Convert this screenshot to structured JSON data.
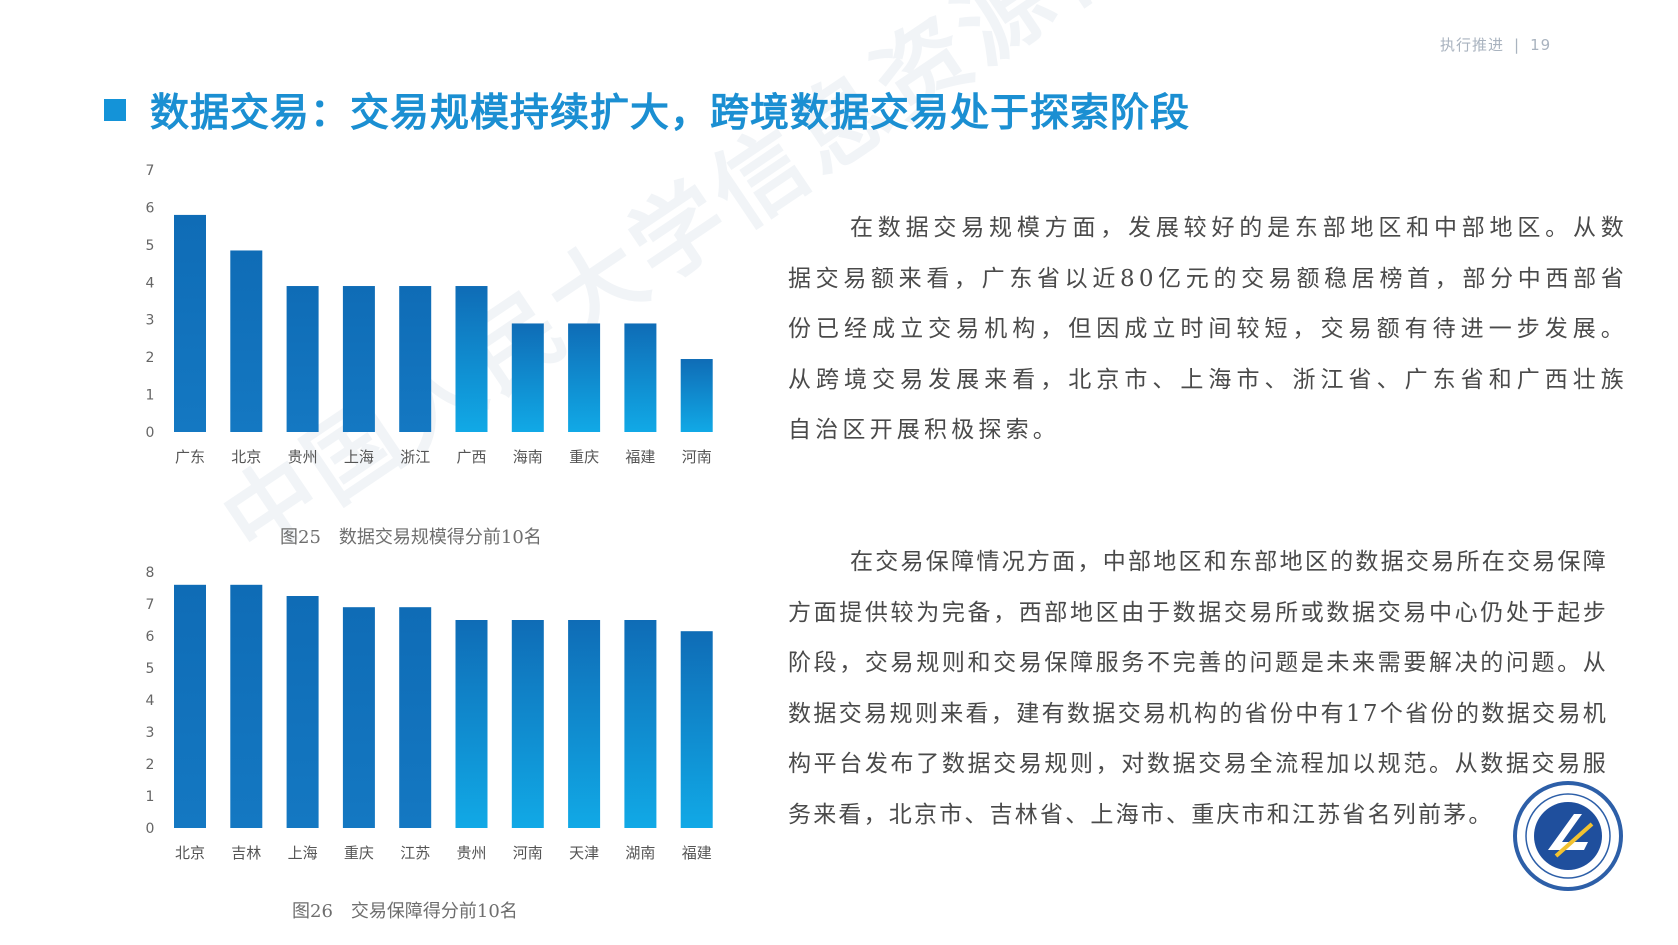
{
  "header": {
    "section": "执行推进",
    "separator": "|",
    "page_number": "19"
  },
  "title": "数据交易：交易规模持续扩大，跨境数据交易处于探索阶段",
  "colors": {
    "accent": "#1493d8",
    "bar_dark": "#0f6cb6",
    "bar_light": "#11a9e6",
    "text": "#4a4a4a"
  },
  "chart_data": [
    {
      "type": "bar",
      "title": "",
      "categories": [
        "广东",
        "北京",
        "贵州",
        "上海",
        "浙江",
        "广西",
        "海南",
        "重庆",
        "福建",
        "河南"
      ],
      "values": [
        5.8,
        4.85,
        3.9,
        3.9,
        3.9,
        3.9,
        2.9,
        2.9,
        2.9,
        1.95
      ],
      "ylim": [
        0,
        7
      ],
      "yticks": [
        0,
        1,
        2,
        3,
        4,
        5,
        6,
        7
      ],
      "xlabel": "",
      "ylabel": "",
      "grid": false,
      "legend": "none",
      "caption": "图25　数据交易规模得分前10名"
    },
    {
      "type": "bar",
      "title": "",
      "categories": [
        "北京",
        "吉林",
        "上海",
        "重庆",
        "江苏",
        "贵州",
        "河南",
        "天津",
        "湖南",
        "福建"
      ],
      "values": [
        7.6,
        7.6,
        7.25,
        6.9,
        6.9,
        6.5,
        6.5,
        6.5,
        6.5,
        6.15
      ],
      "ylim": [
        0,
        8
      ],
      "yticks": [
        0,
        1,
        2,
        3,
        4,
        5,
        6,
        7,
        8
      ],
      "xlabel": "",
      "ylabel": "",
      "grid": false,
      "legend": "none",
      "caption": "图26　交易保障得分前10名"
    }
  ],
  "paragraphs": [
    "在数据交易规模方面，发展较好的是东部地区和中部地区。从数据交易额来看，广东省以近80亿元的交易额稳居榜首，部分中西部省份已经成立交易机构，但因成立时间较短，交易额有待进一步发展。从跨境交易发展来看，北京市、上海市、浙江省、广东省和广西壮族自治区开展积极探索。",
    "在交易保障情况方面，中部地区和东部地区的数据交易所在交易保障方面提供较为完备，西部地区由于数据交易所或数据交易中心仍处于起步阶段，交易规则和交易保障服务不完善的问题是未来需要解决的问题。从数据交易规则来看，建有数据交易机构的省份中有17个省份的数据交易机构平台发布了数据交易规则，对数据交易全流程加以规范。从数据交易服务来看，北京市、吉林省、上海市、重庆市和江苏省名列前茅。"
  ],
  "watermark": "中国人民大学信息资源管理学院",
  "logo_icon": "university-seal-icon"
}
